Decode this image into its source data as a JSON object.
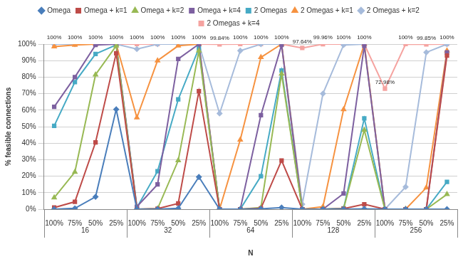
{
  "chart_data": {
    "type": "line",
    "x_label": "N",
    "y_label": "% feasible connections",
    "categories": [
      "100%",
      "75%",
      "50%",
      "25%",
      "100%",
      "75%",
      "50%",
      "25%",
      "100%",
      "75%",
      "50%",
      "25%",
      "100%",
      "75%",
      "50%",
      "25%",
      "100%",
      "75%",
      "50%",
      "25%"
    ],
    "groups": [
      "16",
      "32",
      "64",
      "128",
      "256"
    ],
    "ylim": [
      0,
      100
    ],
    "yticks": [
      {
        "value": 0,
        "label": "0%"
      },
      {
        "value": 10,
        "label": "10%"
      },
      {
        "value": 20,
        "label": "20%"
      },
      {
        "value": 30,
        "label": "30%"
      },
      {
        "value": 40,
        "label": "40%"
      },
      {
        "value": 50,
        "label": "50%"
      },
      {
        "value": 60,
        "label": "60%"
      },
      {
        "value": 70,
        "label": "70%"
      },
      {
        "value": 80,
        "label": "80%"
      },
      {
        "value": 90,
        "label": "90%"
      },
      {
        "value": 100,
        "label": "100%"
      }
    ],
    "grid": true,
    "legend": "top",
    "series": [
      {
        "name": "Omega",
        "color": "#4a7ebb",
        "marker": "diamond",
        "values": [
          0,
          0.5,
          7.5,
          60.5,
          0,
          0,
          0.5,
          19.5,
          0,
          0,
          0.2,
          1,
          0,
          0,
          0,
          0.2,
          0,
          0,
          0,
          0
        ]
      },
      {
        "name": "Omega + k=1",
        "color": "#be4b48",
        "marker": "square",
        "values": [
          1,
          4.5,
          40.5,
          94.5,
          0,
          0.3,
          3.5,
          71.5,
          0,
          0,
          0.5,
          29.5,
          0,
          0,
          0.3,
          3,
          0,
          0,
          0,
          93
        ]
      },
      {
        "name": "Omega + k=2",
        "color": "#98b954",
        "marker": "triangle",
        "values": [
          7,
          22.5,
          81.5,
          99,
          0,
          0.3,
          29.5,
          96,
          0,
          0,
          1,
          82,
          0,
          0,
          0.3,
          48,
          0,
          0,
          0,
          9
        ]
      },
      {
        "name": "Omega + k=4",
        "color": "#7d60a0",
        "marker": "square",
        "values": [
          62,
          80,
          99.5,
          100,
          1.5,
          15,
          91,
          100,
          0,
          0,
          57,
          99.5,
          0,
          0,
          9.5,
          99,
          0,
          0,
          0,
          95
        ]
      },
      {
        "name": "2 Omegas",
        "color": "#46aac5",
        "marker": "square",
        "values": [
          50.5,
          77,
          94,
          99.5,
          1,
          23,
          66.5,
          97.5,
          0,
          0,
          20,
          84,
          0,
          0,
          0.5,
          55,
          0,
          0,
          0,
          16.5
        ]
      },
      {
        "name": "2 Omegas + k=1",
        "color": "#f69240",
        "marker": "triangle",
        "values": [
          98.5,
          99.5,
          100,
          100,
          55.5,
          90,
          99,
          100,
          0,
          42,
          92,
          100,
          0,
          1.5,
          60.5,
          100,
          0,
          0,
          13,
          96
        ]
      },
      {
        "name": "2 Omegas + k=2",
        "color": "#a6bbdb",
        "marker": "diamond",
        "values": [
          100,
          100,
          100,
          100,
          97,
          100,
          100,
          100,
          58,
          96,
          100,
          100,
          3,
          70,
          99.5,
          100,
          0,
          13.5,
          95,
          100
        ]
      },
      {
        "name": "2 Omegas + k=4",
        "color": "#f5a3a0",
        "marker": "square",
        "data_labels": true,
        "values": [
          100,
          100,
          100,
          100,
          100,
          100,
          100,
          100,
          99.84,
          100,
          100,
          100,
          97.64,
          99.96,
          100,
          100,
          72.98,
          100,
          99.85,
          100
        ],
        "value_labels": [
          "100%",
          "100%",
          "100%",
          "100%",
          "100%",
          "100%",
          "100%",
          "100%",
          "99.84%",
          "100%",
          "100%",
          "100%",
          "97.64%",
          "99.96%",
          "100%",
          "100%",
          "72.98%",
          "100%",
          "99.85%",
          "100%"
        ]
      }
    ]
  }
}
